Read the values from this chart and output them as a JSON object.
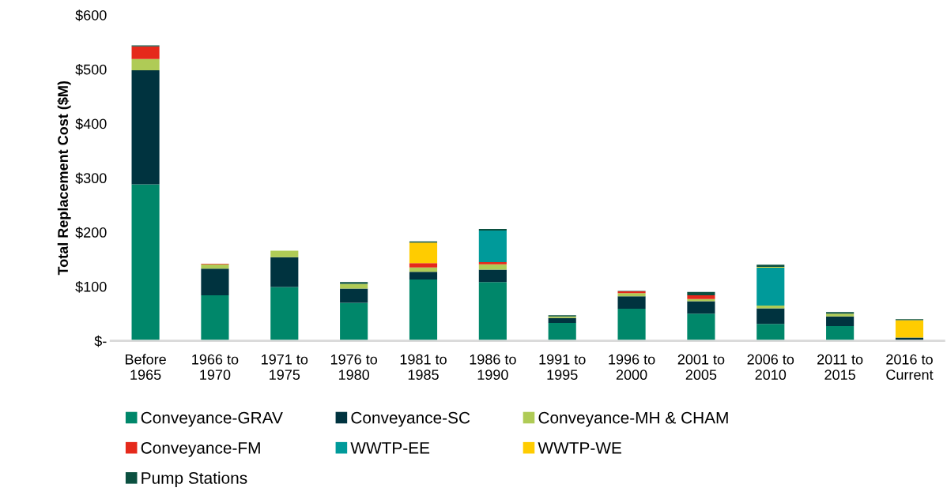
{
  "chart_data": {
    "type": "bar",
    "stacked": true,
    "ylabel": "Total Replacement Cost ($M)",
    "categories": [
      "Before\n1965",
      "1966 to\n1970",
      "1971 to\n1975",
      "1976 to\n1980",
      "1981 to\n1985",
      "1986 to\n1990",
      "1991 to\n1995",
      "1996 to\n2000",
      "2001 to\n2005",
      "2006 to\n2010",
      "2011 to\n2015",
      "2016 to\nCurrent"
    ],
    "series": [
      {
        "name": "Conveyance-GRAV",
        "color": "#00876a",
        "values": [
          288,
          84,
          99,
          70,
          113,
          108,
          33,
          59,
          50,
          31,
          27,
          null
        ]
      },
      {
        "name": "Conveyance-SC",
        "color": "#00333f",
        "values": [
          210,
          49,
          55,
          26,
          14,
          23,
          9,
          23,
          23,
          29,
          18,
          6
        ]
      },
      {
        "name": "Conveyance-MH & CHAM",
        "color": "#afcb56",
        "values": [
          21,
          8,
          12,
          9,
          8,
          10,
          3,
          6,
          4,
          5,
          5,
          0
        ]
      },
      {
        "name": "Conveyance-FM",
        "color": "#e5291b",
        "values": [
          23,
          1,
          null,
          0,
          8,
          4,
          0,
          3,
          7,
          0,
          0,
          0
        ]
      },
      {
        "name": "WWTP-EE",
        "color": "#009a9a",
        "values": [
          0,
          0,
          0,
          0,
          0,
          58,
          0,
          0,
          0,
          70,
          0,
          0
        ]
      },
      {
        "name": "WWTP-WE",
        "color": "#ffcc00",
        "values": [
          0,
          0,
          0,
          0,
          38,
          0,
          0,
          0,
          0,
          1,
          0,
          32
        ]
      },
      {
        "name": "Pump Stations",
        "color": "#0b5040",
        "values": [
          2,
          0,
          0,
          3,
          2,
          3,
          2,
          1,
          6,
          4,
          3,
          2
        ]
      }
    ],
    "ylim": [
      0,
      600
    ],
    "yticks": [
      {
        "value": 0,
        "label": "$-"
      },
      {
        "value": 100,
        "label": "$100"
      },
      {
        "value": 200,
        "label": "$200"
      },
      {
        "value": 300,
        "label": "$300"
      },
      {
        "value": 400,
        "label": "$400"
      },
      {
        "value": 500,
        "label": "$500"
      },
      {
        "value": 600,
        "label": "$600"
      }
    ],
    "grid": false,
    "legend": "bottom"
  }
}
